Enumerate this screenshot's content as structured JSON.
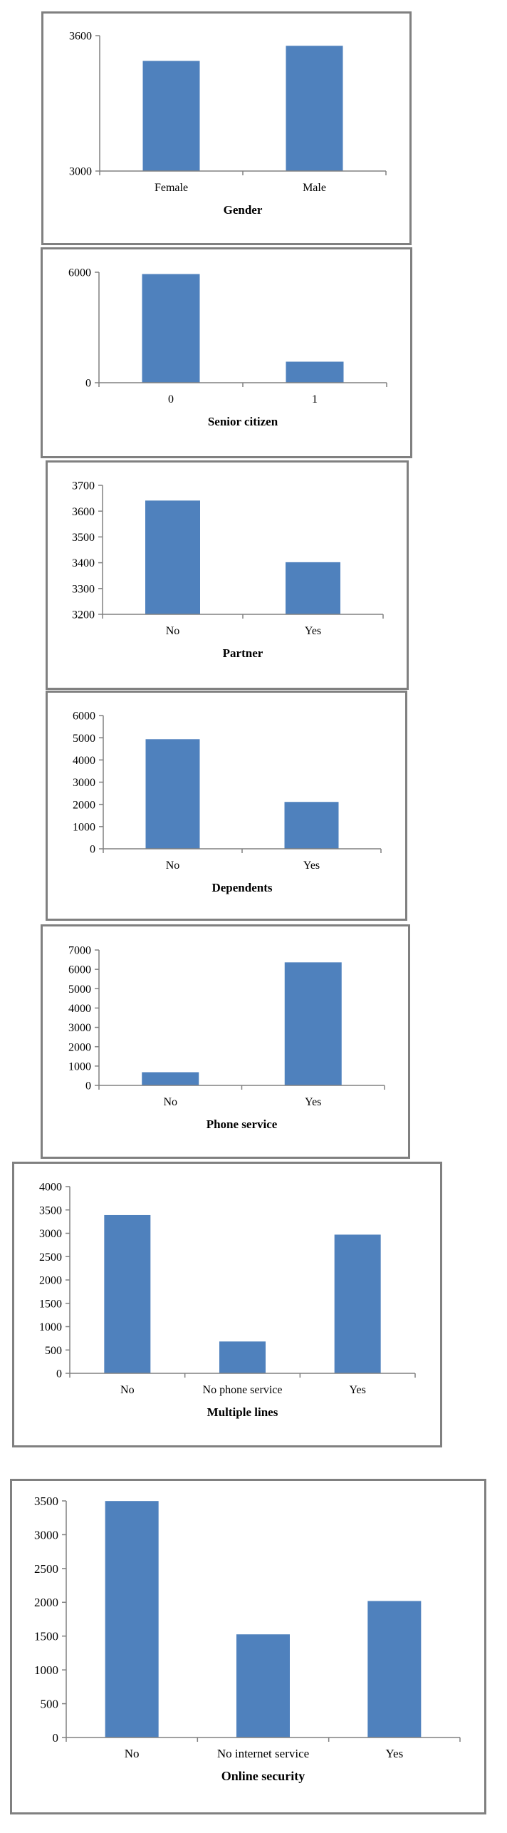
{
  "colors": {
    "bar": "#4F81BD",
    "axis": "#808080",
    "frame": "#808080"
  },
  "chart_data": [
    {
      "type": "bar",
      "title": "Gender",
      "categories": [
        "Female",
        "Male"
      ],
      "values": [
        3488,
        3555
      ],
      "ylim": [
        3000,
        3600
      ],
      "yticks": [
        3000,
        3600
      ],
      "grid": false,
      "legend": "none"
    },
    {
      "type": "bar",
      "title": "Senior citizen",
      "categories": [
        "0",
        "1"
      ],
      "values": [
        5901,
        1142
      ],
      "ylim": [
        0,
        6000
      ],
      "yticks": [
        0,
        6000
      ],
      "grid": false,
      "legend": "none"
    },
    {
      "type": "bar",
      "title": "Partner",
      "categories": [
        "No",
        "Yes"
      ],
      "values": [
        3641,
        3402
      ],
      "ylim": [
        3200,
        3700
      ],
      "yticks": [
        3200,
        3300,
        3400,
        3500,
        3600,
        3700
      ],
      "grid": false,
      "legend": "none"
    },
    {
      "type": "bar",
      "title": "Dependents",
      "categories": [
        "No",
        "Yes"
      ],
      "values": [
        4933,
        2110
      ],
      "ylim": [
        0,
        6000
      ],
      "yticks": [
        0,
        1000,
        2000,
        3000,
        4000,
        5000,
        6000
      ],
      "grid": false,
      "legend": "none"
    },
    {
      "type": "bar",
      "title": "Phone service",
      "categories": [
        "No",
        "Yes"
      ],
      "values": [
        682,
        6361
      ],
      "ylim": [
        0,
        7000
      ],
      "yticks": [
        0,
        1000,
        2000,
        3000,
        4000,
        5000,
        6000,
        7000
      ],
      "grid": false,
      "legend": "none"
    },
    {
      "type": "bar",
      "title": "Multiple lines",
      "categories": [
        "No",
        "No phone service",
        "Yes"
      ],
      "values": [
        3390,
        682,
        2971
      ],
      "ylim": [
        0,
        4000
      ],
      "yticks": [
        0,
        500,
        1000,
        1500,
        2000,
        2500,
        3000,
        3500,
        4000
      ],
      "grid": false,
      "legend": "none"
    },
    {
      "type": "bar",
      "title": "Online security",
      "categories": [
        "No",
        "No internet service",
        "Yes"
      ],
      "values": [
        3498,
        1526,
        2019
      ],
      "ylim": [
        0,
        3500
      ],
      "yticks": [
        0,
        500,
        1000,
        1500,
        2000,
        2500,
        3000,
        3500
      ],
      "grid": false,
      "legend": "none"
    }
  ]
}
